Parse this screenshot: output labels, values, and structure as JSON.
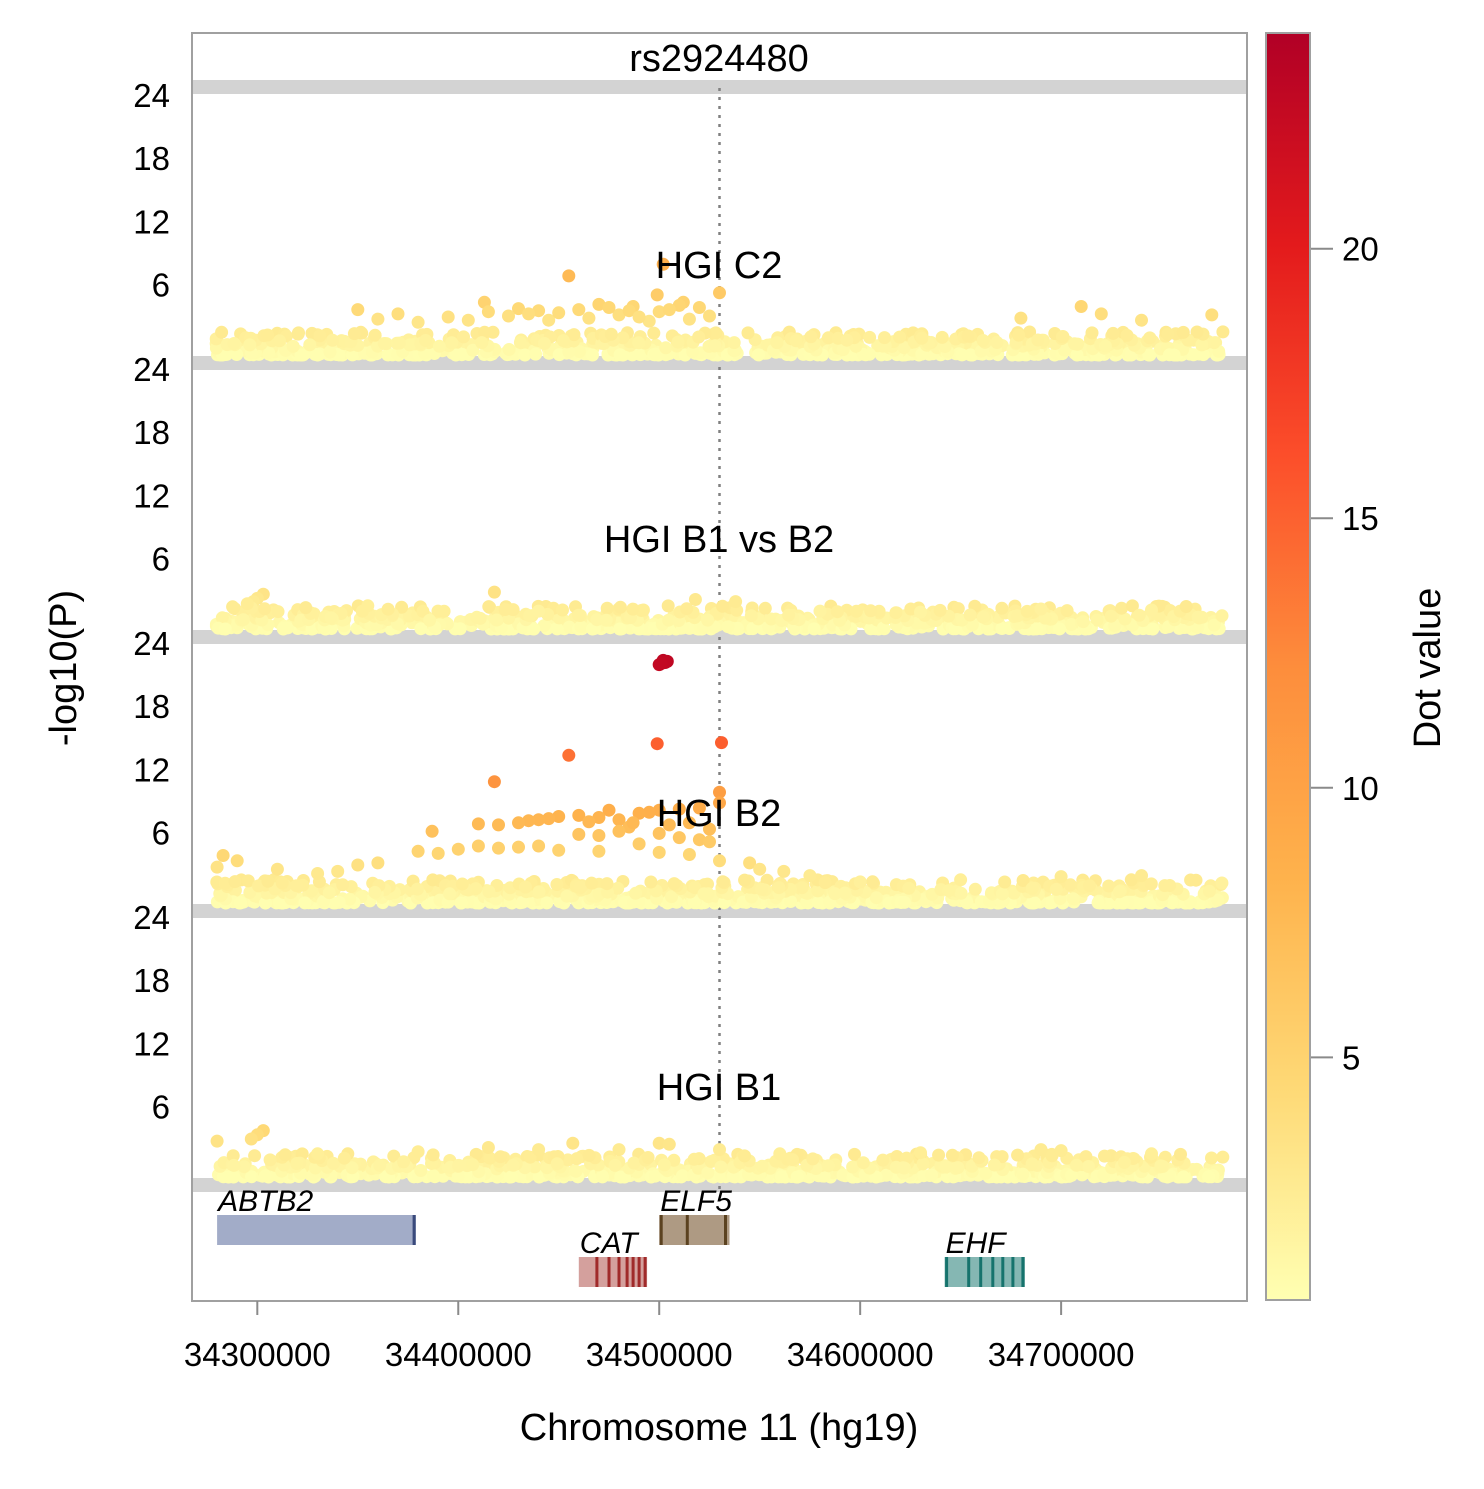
{
  "chart_data": {
    "type": "scatter",
    "title": "rs2924480",
    "xlabel": "Chromosome 11 (hg19)",
    "ylabel": "-log10(P)",
    "colorbar_label": "Dot value",
    "colorbar_range": [
      0.5,
      24
    ],
    "colorbar_ticks": [
      "5",
      "10",
      "15",
      "20"
    ],
    "colorbar_tick_values": [
      5,
      10,
      15,
      20
    ],
    "colors": [
      "#ffffb2",
      "#fed976",
      "#feb24c",
      "#fd8d3c",
      "#fc4e2a",
      "#e31a1c",
      "#b10026"
    ],
    "xlim": [
      34267500,
      34792500
    ],
    "x_ticks": [
      "34300000",
      "34400000",
      "34500000",
      "34600000",
      "34700000"
    ],
    "x_tick_values": [
      34300000,
      34400000,
      34500000,
      34600000,
      34700000
    ],
    "y_ticks": [
      "6",
      "12",
      "18",
      "24"
    ],
    "y_tick_values": [
      6,
      12,
      18,
      24
    ],
    "ylim": [
      0,
      25
    ],
    "lead_snp_position": 34530000,
    "panels": [
      {
        "name": "HGI C2",
        "points": [
          {
            "x": 34455000,
            "y": 7.5
          },
          {
            "x": 34502000,
            "y": 8.6
          },
          {
            "x": 34530000,
            "y": 5.9
          },
          {
            "x": 34499000,
            "y": 5.7
          },
          {
            "x": 34413000,
            "y": 5.0
          },
          {
            "x": 34512000,
            "y": 5.0
          },
          {
            "x": 34487000,
            "y": 4.6
          },
          {
            "x": 34470000,
            "y": 4.8
          },
          {
            "x": 34440000,
            "y": 4.2
          },
          {
            "x": 34520000,
            "y": 4.5
          },
          {
            "x": 34370000,
            "y": 3.9
          },
          {
            "x": 34680000,
            "y": 3.5
          },
          {
            "x": 34710000,
            "y": 4.6
          },
          {
            "x": 34720000,
            "y": 3.9
          },
          {
            "x": 34740000,
            "y": 3.3
          },
          {
            "x": 34775000,
            "y": 3.8
          },
          {
            "x": 34350000,
            "y": 4.3
          },
          {
            "x": 34395000,
            "y": 3.6
          },
          {
            "x": 34430000,
            "y": 4.4
          },
          {
            "x": 34460000,
            "y": 4.3
          },
          {
            "x": 34480000,
            "y": 3.8
          },
          {
            "x": 34500000,
            "y": 4.1
          },
          {
            "x": 34510000,
            "y": 4.7
          },
          {
            "x": 34525000,
            "y": 3.7
          },
          {
            "x": 34425000,
            "y": 3.7
          },
          {
            "x": 34415000,
            "y": 4.1
          },
          {
            "x": 34445000,
            "y": 3.3
          },
          {
            "x": 34465000,
            "y": 3.5
          },
          {
            "x": 34495000,
            "y": 3.2
          },
          {
            "x": 34505000,
            "y": 4.3
          },
          {
            "x": 34515000,
            "y": 3.4
          },
          {
            "x": 34485000,
            "y": 4.2
          },
          {
            "x": 34475000,
            "y": 4.5
          },
          {
            "x": 34360000,
            "y": 3.4
          },
          {
            "x": 34380000,
            "y": 3.1
          },
          {
            "x": 34405000,
            "y": 3.3
          },
          {
            "x": 34435000,
            "y": 3.9
          },
          {
            "x": 34450000,
            "y": 4.0
          },
          {
            "x": 34490000,
            "y": 3.6
          }
        ]
      },
      {
        "name": "HGI B1 vs B2",
        "points": [
          {
            "x": 34418000,
            "y": 3.5
          },
          {
            "x": 34518000,
            "y": 2.8
          },
          {
            "x": 34538000,
            "y": 2.6
          },
          {
            "x": 34303000,
            "y": 3.3
          },
          {
            "x": 34300000,
            "y": 2.9
          },
          {
            "x": 34298000,
            "y": 2.6
          },
          {
            "x": 34355000,
            "y": 2.2
          },
          {
            "x": 34297000,
            "y": 2.0
          },
          {
            "x": 34295000,
            "y": 2.4
          },
          {
            "x": 34690000,
            "y": 1.9
          },
          {
            "x": 34745000,
            "y": 1.8
          },
          {
            "x": 34440000,
            "y": 1.7
          },
          {
            "x": 34580000,
            "y": 1.7
          },
          {
            "x": 34630000,
            "y": 1.6
          }
        ]
      },
      {
        "name": "HGI B2",
        "points": [
          {
            "x": 34502000,
            "y": 23.0
          },
          {
            "x": 34504000,
            "y": 22.9
          },
          {
            "x": 34500000,
            "y": 22.6
          },
          {
            "x": 34503000,
            "y": 22.8
          },
          {
            "x": 34501000,
            "y": 22.7
          },
          {
            "x": 34499000,
            "y": 15.1
          },
          {
            "x": 34531000,
            "y": 15.2
          },
          {
            "x": 34455000,
            "y": 14.0
          },
          {
            "x": 34418000,
            "y": 11.5
          },
          {
            "x": 34530000,
            "y": 10.5
          },
          {
            "x": 34530000,
            "y": 9.5
          },
          {
            "x": 34520000,
            "y": 9.0
          },
          {
            "x": 34510000,
            "y": 8.9
          },
          {
            "x": 34500000,
            "y": 8.8
          },
          {
            "x": 34495000,
            "y": 8.6
          },
          {
            "x": 34475000,
            "y": 8.8
          },
          {
            "x": 34490000,
            "y": 8.5
          },
          {
            "x": 34460000,
            "y": 8.3
          },
          {
            "x": 34450000,
            "y": 8.2
          },
          {
            "x": 34445000,
            "y": 8.0
          },
          {
            "x": 34440000,
            "y": 7.9
          },
          {
            "x": 34435000,
            "y": 7.8
          },
          {
            "x": 34430000,
            "y": 7.6
          },
          {
            "x": 34420000,
            "y": 7.4
          },
          {
            "x": 34410000,
            "y": 7.5
          },
          {
            "x": 34470000,
            "y": 8.1
          },
          {
            "x": 34465000,
            "y": 7.7
          },
          {
            "x": 34480000,
            "y": 7.9
          },
          {
            "x": 34485000,
            "y": 7.2
          },
          {
            "x": 34505000,
            "y": 7.4
          },
          {
            "x": 34515000,
            "y": 7.6
          },
          {
            "x": 34525000,
            "y": 7.0
          },
          {
            "x": 34487000,
            "y": 7.6
          },
          {
            "x": 34387000,
            "y": 6.8
          },
          {
            "x": 34460000,
            "y": 6.5
          },
          {
            "x": 34470000,
            "y": 6.4
          },
          {
            "x": 34480000,
            "y": 6.8
          },
          {
            "x": 34500000,
            "y": 6.6
          },
          {
            "x": 34510000,
            "y": 6.2
          },
          {
            "x": 34520000,
            "y": 6.0
          },
          {
            "x": 34525000,
            "y": 5.8
          },
          {
            "x": 34490000,
            "y": 5.6
          },
          {
            "x": 34440000,
            "y": 5.4
          },
          {
            "x": 34430000,
            "y": 5.3
          },
          {
            "x": 34420000,
            "y": 5.2
          },
          {
            "x": 34410000,
            "y": 5.4
          },
          {
            "x": 34400000,
            "y": 5.1
          },
          {
            "x": 34390000,
            "y": 4.7
          },
          {
            "x": 34380000,
            "y": 4.9
          },
          {
            "x": 34450000,
            "y": 5.0
          },
          {
            "x": 34470000,
            "y": 4.9
          },
          {
            "x": 34500000,
            "y": 4.8
          },
          {
            "x": 34515000,
            "y": 4.6
          },
          {
            "x": 34530000,
            "y": 4.0
          },
          {
            "x": 34545000,
            "y": 3.8
          },
          {
            "x": 34550000,
            "y": 3.2
          },
          {
            "x": 34562000,
            "y": 3.0
          },
          {
            "x": 34575000,
            "y": 2.6
          },
          {
            "x": 34360000,
            "y": 3.8
          },
          {
            "x": 34350000,
            "y": 3.6
          },
          {
            "x": 34340000,
            "y": 3.0
          },
          {
            "x": 34330000,
            "y": 2.8
          },
          {
            "x": 34290000,
            "y": 4.0
          },
          {
            "x": 34283000,
            "y": 4.5
          },
          {
            "x": 34280000,
            "y": 3.4
          },
          {
            "x": 34310000,
            "y": 3.2
          },
          {
            "x": 34700000,
            "y": 2.5
          },
          {
            "x": 34740000,
            "y": 2.6
          },
          {
            "x": 34650000,
            "y": 2.2
          },
          {
            "x": 34600000,
            "y": 2.0
          },
          {
            "x": 34780000,
            "y": 1.9
          }
        ]
      },
      {
        "name": "HGI B1",
        "points": [
          {
            "x": 34303000,
            "y": 4.4
          },
          {
            "x": 34300000,
            "y": 4.0
          },
          {
            "x": 34297000,
            "y": 3.6
          },
          {
            "x": 34280000,
            "y": 3.4
          },
          {
            "x": 34500000,
            "y": 3.2
          },
          {
            "x": 34505000,
            "y": 3.1
          },
          {
            "x": 34457000,
            "y": 3.2
          },
          {
            "x": 34530000,
            "y": 2.6
          },
          {
            "x": 34480000,
            "y": 2.6
          },
          {
            "x": 34690000,
            "y": 2.6
          },
          {
            "x": 34380000,
            "y": 2.4
          },
          {
            "x": 34415000,
            "y": 2.8
          },
          {
            "x": 34560000,
            "y": 2.2
          },
          {
            "x": 34630000,
            "y": 2.3
          },
          {
            "x": 34745000,
            "y": 2.2
          },
          {
            "x": 34700000,
            "y": 2.5
          },
          {
            "x": 34330000,
            "y": 2.2
          },
          {
            "x": 34440000,
            "y": 2.6
          }
        ]
      }
    ],
    "genes": [
      {
        "name": "ABTB2",
        "start": 34280000,
        "end": 34379000,
        "row": 0,
        "color": "#a2acc8",
        "edge": "#3a4a7c",
        "exons": [
          34378000
        ]
      },
      {
        "name": "ELF5",
        "start": 34500000,
        "end": 34535000,
        "row": 0,
        "color": "#ae9a83",
        "edge": "#5b4220",
        "exons": [
          34501000,
          34514000,
          34533000
        ]
      },
      {
        "name": "CAT",
        "start": 34460000,
        "end": 34494000,
        "row": 1,
        "color": "#d4a09d",
        "edge": "#a02a2a",
        "exons": [
          34469000,
          34475000,
          34480000,
          34484000,
          34487000,
          34490000,
          34493000
        ]
      },
      {
        "name": "EHF",
        "start": 34642000,
        "end": 34682000,
        "row": 1,
        "color": "#85b7b3",
        "edge": "#16736d",
        "exons": [
          34643000,
          34654000,
          34660000,
          34666000,
          34671000,
          34676000,
          34681000
        ]
      }
    ]
  }
}
